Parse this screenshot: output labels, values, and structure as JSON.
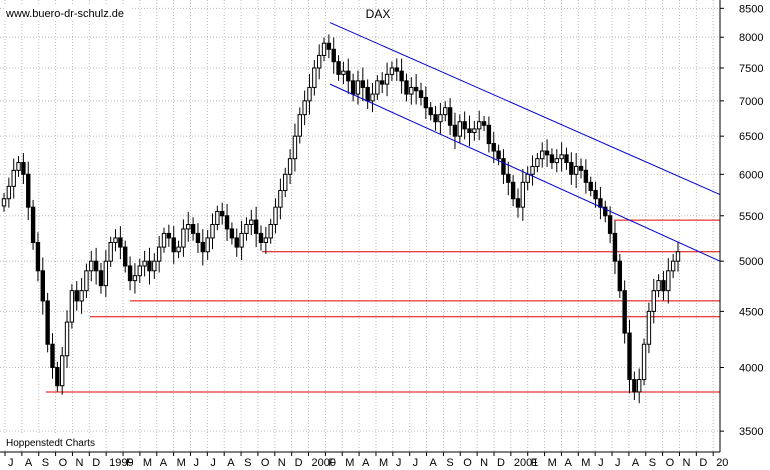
{
  "header": {
    "source": "www.buero-dr-schulz.de"
  },
  "footer": {
    "provider": "Hoppenstedt Charts"
  },
  "chart_data": {
    "type": "candlestick",
    "title": "DAX",
    "y_scale": "log",
    "ylim": [
      3350,
      8650
    ],
    "y_ticks": [
      3500,
      4000,
      4500,
      5000,
      5500,
      6000,
      6500,
      7000,
      7500,
      8000,
      8500
    ],
    "x_labels": [
      "J",
      "A",
      "S",
      "O",
      "N",
      "D",
      "1999",
      "F",
      "M",
      "A",
      "M",
      "J",
      "J",
      "A",
      "S",
      "O",
      "N",
      "D",
      "2000",
      "F",
      "M",
      "A",
      "M",
      "J",
      "J",
      "A",
      "S",
      "O",
      "N",
      "D",
      "2001",
      "F",
      "M",
      "A",
      "M",
      "J",
      "J",
      "A",
      "S",
      "O",
      "N",
      "D",
      "20"
    ],
    "grid": true,
    "weekly_closes": [
      5700,
      5850,
      6050,
      6150,
      6000,
      5600,
      5200,
      4900,
      4600,
      4200,
      4000,
      3850,
      4100,
      4400,
      4700,
      4600,
      4700,
      4900,
      5000,
      4900,
      4750,
      5000,
      5200,
      5250,
      5150,
      4950,
      4800,
      4850,
      4950,
      5000,
      4900,
      5000,
      5150,
      5300,
      5250,
      5100,
      5150,
      5350,
      5400,
      5300,
      5200,
      5100,
      5250,
      5400,
      5550,
      5500,
      5350,
      5250,
      5150,
      5300,
      5400,
      5450,
      5300,
      5200,
      5250,
      5400,
      5600,
      5800,
      6000,
      6200,
      6500,
      6800,
      7000,
      7200,
      7500,
      7700,
      7900,
      7800,
      7600,
      7400,
      7450,
      7300,
      7100,
      7300,
      7200,
      7000,
      7100,
      7300,
      7250,
      7400,
      7500,
      7450,
      7300,
      7100,
      7200,
      7150,
      7050,
      6900,
      6800,
      6700,
      6800,
      6900,
      6650,
      6500,
      6700,
      6600,
      6550,
      6600,
      6700,
      6650,
      6400,
      6300,
      6200,
      6000,
      5900,
      5700,
      5600,
      5900,
      6000,
      6100,
      6200,
      6300,
      6250,
      6150,
      6200,
      6250,
      6150,
      6000,
      6100,
      6050,
      5900,
      5800,
      5700,
      5600,
      5500,
      5300,
      5000,
      4700,
      4300,
      3900,
      3800,
      3900,
      4200,
      4500,
      4700,
      4800,
      4700,
      4900,
      5000,
      5100
    ],
    "support_resistance_levels": [
      3800,
      4450,
      4600,
      5100,
      5450
    ],
    "trend_channel": {
      "upper": [
        {
          "date": "2000-03",
          "value": 8250
        },
        {
          "date": "2002-01",
          "value": 5750
        }
      ],
      "lower": [
        {
          "date": "2000-03",
          "value": 7250
        },
        {
          "date": "2002-01",
          "value": 5000
        }
      ]
    }
  }
}
